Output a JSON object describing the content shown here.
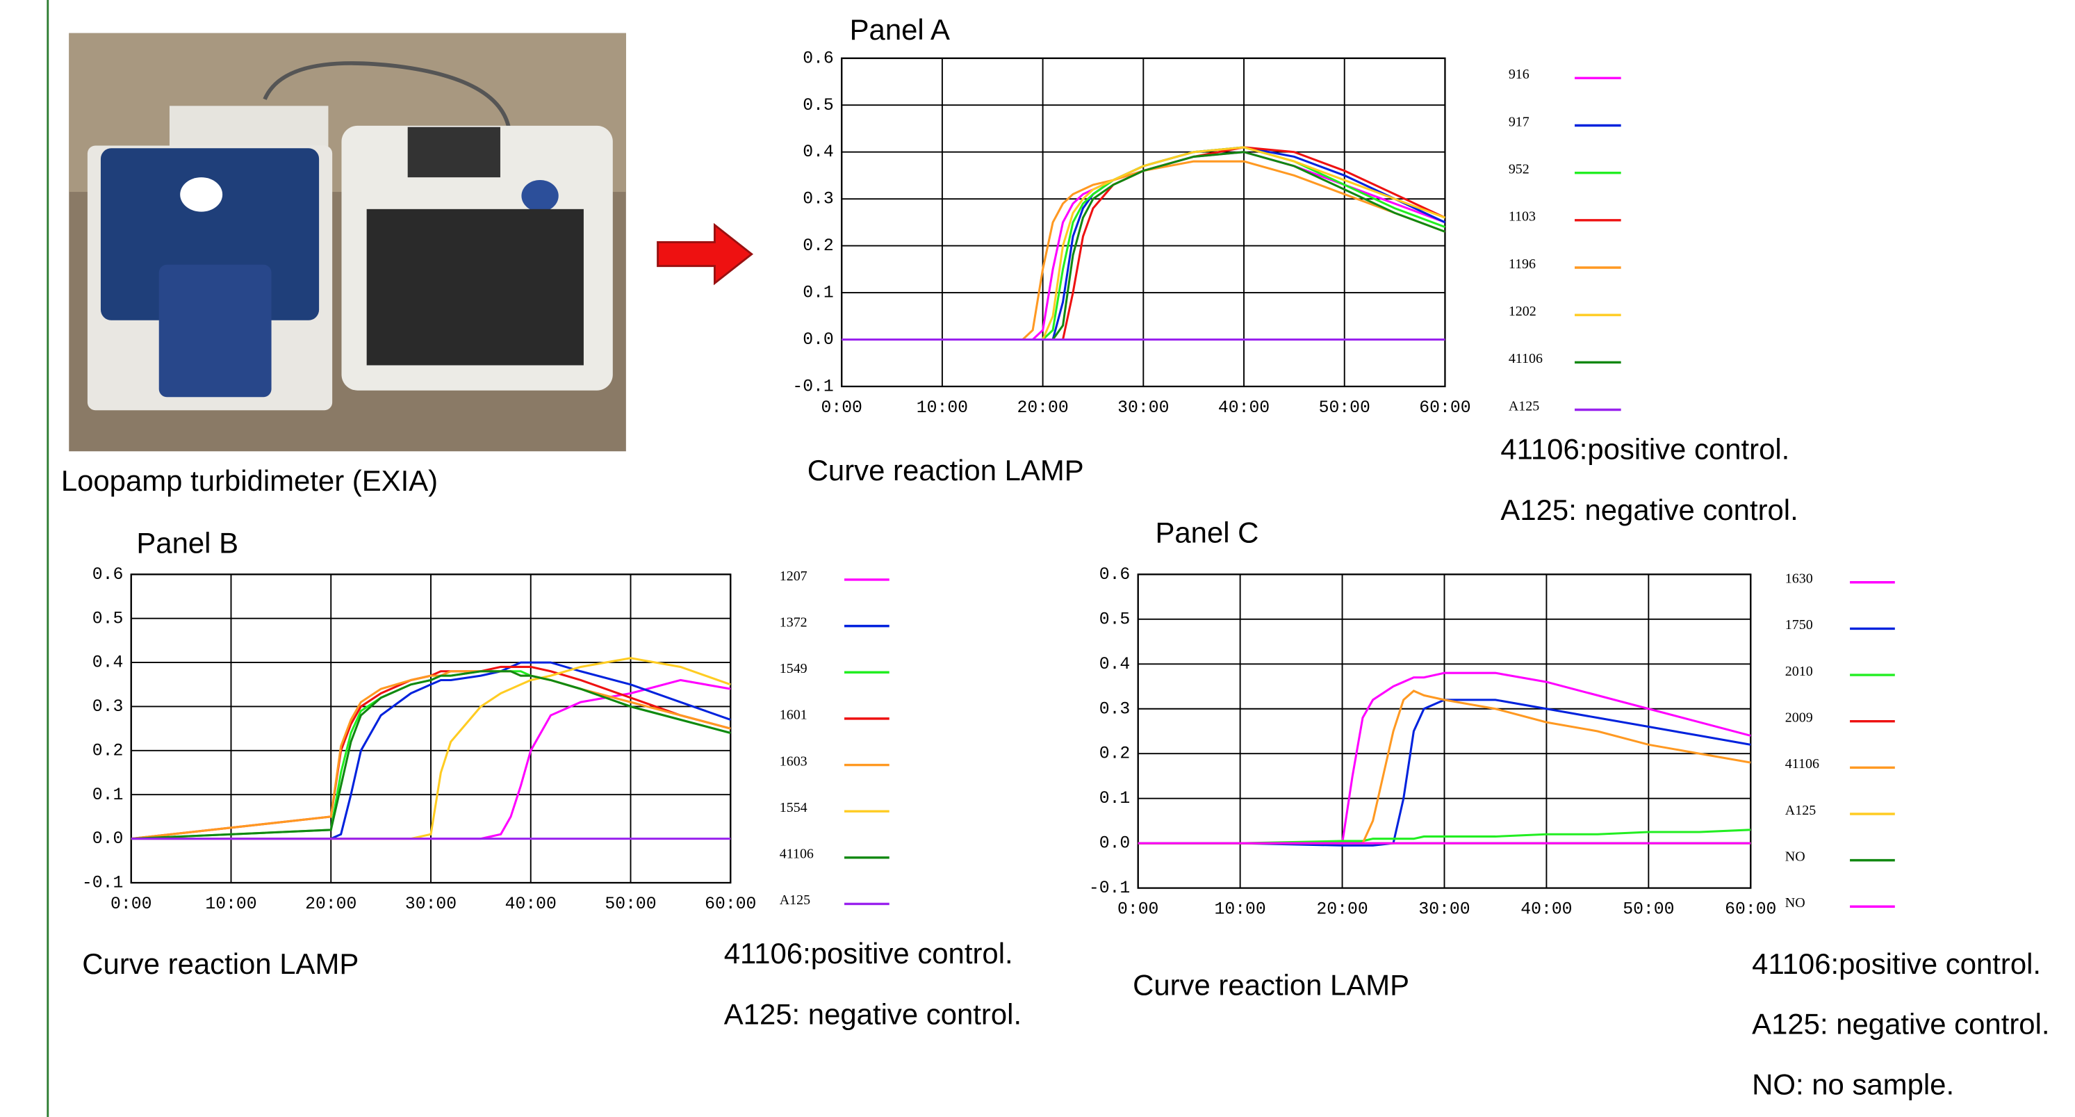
{
  "photo_caption": "Loopamp turbidimeter (EXIA)",
  "chart_data": [
    {
      "type": "line",
      "title": "Panel A",
      "caption": "Curve reaction LAMP",
      "notes": [
        "41106:positive control.",
        "A125: negative control."
      ],
      "grid": true,
      "x": [
        0,
        18,
        19,
        20,
        21,
        22,
        23,
        24,
        25,
        27,
        30,
        35,
        40,
        45,
        50,
        55,
        60
      ],
      "xlim": [
        0,
        60
      ],
      "xticks": [
        {
          "value": 0,
          "label": "0:00"
        },
        {
          "value": 10,
          "label": "10:00"
        },
        {
          "value": 20,
          "label": "20:00"
        },
        {
          "value": 30,
          "label": "30:00"
        },
        {
          "value": 40,
          "label": "40:00"
        },
        {
          "value": 50,
          "label": "50:00"
        },
        {
          "value": 60,
          "label": "60:00"
        }
      ],
      "ylim": [
        -0.1,
        0.6
      ],
      "yticks": [
        -0.1,
        {
          "value": 0,
          "label": "0.0"
        },
        0.1,
        0.2,
        0.3,
        0.4,
        0.5,
        0.6
      ],
      "series": [
        {
          "name": "916",
          "color": "#ff00ff",
          "values": [
            0,
            0,
            0,
            0.02,
            0.15,
            0.25,
            0.29,
            0.31,
            0.32,
            0.34,
            0.36,
            0.39,
            0.4,
            0.37,
            0.33,
            0.29,
            0.25
          ]
        },
        {
          "name": "917",
          "color": "#0022dd",
          "values": [
            0,
            0,
            0,
            0,
            0,
            0.08,
            0.22,
            0.28,
            0.31,
            0.34,
            0.37,
            0.4,
            0.41,
            0.39,
            0.35,
            0.3,
            0.25
          ]
        },
        {
          "name": "952",
          "color": "#22ee22",
          "values": [
            0,
            0,
            0,
            0,
            0.02,
            0.15,
            0.25,
            0.29,
            0.31,
            0.34,
            0.37,
            0.4,
            0.41,
            0.38,
            0.33,
            0.28,
            0.24
          ]
        },
        {
          "name": "1103",
          "color": "#ee1111",
          "values": [
            0,
            0,
            0,
            0,
            0,
            0,
            0.1,
            0.22,
            0.28,
            0.33,
            0.36,
            0.39,
            0.41,
            0.4,
            0.36,
            0.31,
            0.26
          ]
        },
        {
          "name": "1196",
          "color": "#ff9922",
          "values": [
            0,
            0,
            0.02,
            0.15,
            0.25,
            0.29,
            0.31,
            0.32,
            0.33,
            0.34,
            0.36,
            0.38,
            0.38,
            0.35,
            0.31,
            0.27,
            0.23
          ]
        },
        {
          "name": "1202",
          "color": "#ffcc22",
          "values": [
            0,
            0,
            0,
            0,
            0.05,
            0.2,
            0.27,
            0.3,
            0.32,
            0.34,
            0.37,
            0.4,
            0.41,
            0.38,
            0.34,
            0.3,
            0.26
          ]
        },
        {
          "name": "41106",
          "color": "#118811",
          "values": [
            0,
            0,
            0,
            0,
            0,
            0.03,
            0.18,
            0.26,
            0.3,
            0.33,
            0.36,
            0.39,
            0.4,
            0.37,
            0.32,
            0.27,
            0.23
          ]
        },
        {
          "name": "A125",
          "color": "#9922ee",
          "values": [
            0,
            0,
            0,
            0,
            0,
            0,
            0,
            0,
            0,
            0,
            0,
            0,
            0,
            0,
            0,
            0,
            0
          ]
        }
      ]
    },
    {
      "type": "line",
      "title": "Panel B",
      "caption": "Curve reaction LAMP",
      "notes": [
        "41106:positive control.",
        "A125: negative control."
      ],
      "grid": true,
      "x": [
        0,
        20,
        21,
        22,
        23,
        25,
        28,
        30,
        31,
        32,
        35,
        37,
        38,
        39,
        40,
        42,
        45,
        50,
        55,
        60
      ],
      "xlim": [
        0,
        60
      ],
      "xticks": [
        {
          "value": 0,
          "label": "0:00"
        },
        {
          "value": 10,
          "label": "10:00"
        },
        {
          "value": 20,
          "label": "20:00"
        },
        {
          "value": 30,
          "label": "30:00"
        },
        {
          "value": 40,
          "label": "40:00"
        },
        {
          "value": 50,
          "label": "50:00"
        },
        {
          "value": 60,
          "label": "60:00"
        }
      ],
      "ylim": [
        -0.1,
        0.6
      ],
      "yticks": [
        -0.1,
        {
          "value": 0,
          "label": "0.0"
        },
        0.1,
        0.2,
        0.3,
        0.4,
        0.5,
        0.6
      ],
      "series": [
        {
          "name": "1207",
          "color": "#ff00ff",
          "values": [
            0,
            0,
            0,
            0,
            0,
            0,
            0,
            0,
            0,
            0,
            0,
            0.01,
            0.05,
            0.12,
            0.2,
            0.28,
            0.31,
            0.33,
            0.36,
            0.34
          ]
        },
        {
          "name": "1372",
          "color": "#0022dd",
          "values": [
            0,
            0,
            0.01,
            0.1,
            0.2,
            0.28,
            0.33,
            0.35,
            0.36,
            0.36,
            0.37,
            0.38,
            0.39,
            0.4,
            0.4,
            0.4,
            0.38,
            0.35,
            0.31,
            0.27
          ]
        },
        {
          "name": "1549",
          "color": "#22ee22",
          "values": [
            0,
            0.02,
            0.15,
            0.24,
            0.29,
            0.32,
            0.35,
            0.36,
            0.37,
            0.37,
            0.38,
            0.38,
            0.38,
            0.38,
            0.37,
            0.36,
            0.34,
            0.3,
            0.27,
            0.24
          ]
        },
        {
          "name": "1601",
          "color": "#ee1111",
          "values": [
            0,
            0.05,
            0.2,
            0.26,
            0.3,
            0.33,
            0.36,
            0.37,
            0.38,
            0.38,
            0.38,
            0.39,
            0.39,
            0.39,
            0.39,
            0.38,
            0.36,
            0.32,
            0.28,
            0.25
          ]
        },
        {
          "name": "1603",
          "color": "#ff9922",
          "values": [
            0,
            0.05,
            0.21,
            0.27,
            0.31,
            0.34,
            0.36,
            0.37,
            0.37,
            0.38,
            0.38,
            0.38,
            0.38,
            0.37,
            0.37,
            0.36,
            0.34,
            0.31,
            0.28,
            0.25
          ]
        },
        {
          "name": "1554",
          "color": "#ffcc22",
          "values": [
            0,
            0,
            0,
            0,
            0,
            0,
            0,
            0.01,
            0.15,
            0.22,
            0.3,
            0.33,
            0.34,
            0.35,
            0.36,
            0.37,
            0.39,
            0.41,
            0.39,
            0.35
          ]
        },
        {
          "name": "41106",
          "color": "#118811",
          "values": [
            0,
            0.02,
            0.12,
            0.22,
            0.28,
            0.32,
            0.35,
            0.36,
            0.37,
            0.37,
            0.38,
            0.38,
            0.38,
            0.37,
            0.37,
            0.36,
            0.34,
            0.3,
            0.27,
            0.24
          ]
        },
        {
          "name": "A125",
          "color": "#9922ee",
          "values": [
            0,
            0,
            0,
            0,
            0,
            0,
            0,
            0,
            0,
            0,
            0,
            0,
            0,
            0,
            0,
            0,
            0,
            0,
            0,
            0
          ]
        }
      ]
    },
    {
      "type": "line",
      "title": "Panel C",
      "caption": "Curve reaction LAMP",
      "notes": [
        "41106:positive control.",
        "A125: negative control.",
        "NO: no sample."
      ],
      "grid": true,
      "x": [
        0,
        10,
        20,
        21,
        22,
        23,
        25,
        26,
        27,
        28,
        30,
        35,
        40,
        45,
        50,
        55,
        60
      ],
      "xlim": [
        0,
        60
      ],
      "xticks": [
        {
          "value": 0,
          "label": "0:00"
        },
        {
          "value": 10,
          "label": "10:00"
        },
        {
          "value": 20,
          "label": "20:00"
        },
        {
          "value": 30,
          "label": "30:00"
        },
        {
          "value": 40,
          "label": "40:00"
        },
        {
          "value": 50,
          "label": "50:00"
        },
        {
          "value": 60,
          "label": "60:00"
        }
      ],
      "ylim": [
        -0.1,
        0.6
      ],
      "yticks": [
        -0.1,
        {
          "value": 0,
          "label": "0.0"
        },
        0.1,
        0.2,
        0.3,
        0.4,
        0.5,
        0.6
      ],
      "series": [
        {
          "name": "1630",
          "color": "#ff00ff",
          "values": [
            0,
            0,
            0,
            0.15,
            0.28,
            0.32,
            0.35,
            0.36,
            0.37,
            0.37,
            0.38,
            0.38,
            0.36,
            0.33,
            0.3,
            0.27,
            0.24
          ]
        },
        {
          "name": "1750",
          "color": "#0022dd",
          "values": [
            0,
            0,
            -0.005,
            -0.005,
            -0.005,
            -0.005,
            0,
            0.1,
            0.25,
            0.3,
            0.32,
            0.32,
            0.3,
            0.28,
            0.26,
            0.24,
            0.22
          ]
        },
        {
          "name": "2010",
          "color": "#22ee22",
          "values": [
            0,
            0,
            0.005,
            0.005,
            0.005,
            0.01,
            0.01,
            0.01,
            0.01,
            0.015,
            0.015,
            0.015,
            0.02,
            0.02,
            0.025,
            0.025,
            0.03
          ]
        },
        {
          "name": "2009",
          "color": "#ee1111",
          "values": [
            0,
            0,
            0,
            0,
            0,
            0,
            0,
            0,
            0,
            0,
            0,
            0,
            0,
            0,
            0,
            0,
            0
          ]
        },
        {
          "name": "41106",
          "color": "#ff9922",
          "values": [
            0,
            0,
            0,
            0,
            0,
            0.05,
            0.25,
            0.32,
            0.34,
            0.33,
            0.32,
            0.3,
            0.27,
            0.25,
            0.22,
            0.2,
            0.18
          ]
        },
        {
          "name": "A125",
          "color": "#ffcc22",
          "values": [
            0,
            0,
            0,
            0,
            0,
            0,
            0,
            0,
            0,
            0,
            0,
            0,
            0,
            0,
            0,
            0,
            0
          ]
        },
        {
          "name": "NO",
          "color": "#118811",
          "values": [
            0,
            0,
            0,
            0,
            0,
            0,
            0,
            0,
            0,
            0,
            0,
            0,
            0,
            0,
            0,
            0,
            0
          ]
        },
        {
          "name": "NO",
          "color": "#ff00ff",
          "values": [
            0,
            0,
            0,
            0,
            0,
            0,
            0,
            0,
            0,
            0,
            0,
            0,
            0,
            0,
            0,
            0,
            0
          ]
        }
      ]
    }
  ]
}
